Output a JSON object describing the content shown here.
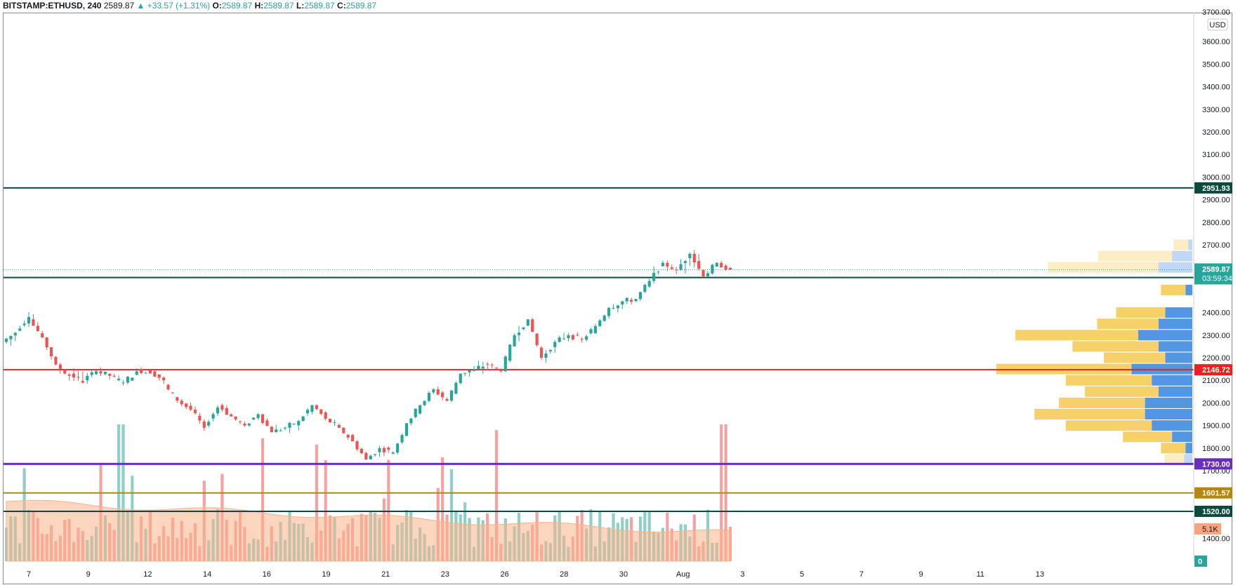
{
  "header": {
    "symbol": "BITSTAMP:ETHUSD, 240",
    "price": "2589.87",
    "change": "▲ +33.57 (+1.31%)",
    "o_label": "O:",
    "o": "2589.87",
    "h_label": "H:",
    "h": "2589.87",
    "l_label": "L:",
    "l": "2589.87",
    "c_label": "C:",
    "c": "2589.87"
  },
  "currency_label": "USD",
  "colors": {
    "up": "#26a69a",
    "down": "#ef5350",
    "up_vol": "#8fcfc8",
    "down_vol": "#f5a3a0",
    "vol_ma": "#f9b28a",
    "vp_yellow": "#f5cc5a",
    "vp_blue": "#4a90e2",
    "level_dark": "#0b4b3f",
    "level_red": "#f21d1d",
    "level_purple": "#6a2ebf",
    "level_gold": "#b8860b",
    "current": "#26a69a"
  },
  "chart_data": {
    "type": "candlestick",
    "x_tick_labels": [
      "7",
      "9",
      "12",
      "14",
      "16",
      "19",
      "21",
      "23",
      "26",
      "28",
      "30",
      "Aug",
      "3",
      "5",
      "7",
      "9",
      "11",
      "13"
    ],
    "y_tick_labels": [
      "3600.00",
      "3500.00",
      "3400.00",
      "3300.00",
      "3200.00",
      "3100.00",
      "3000.00",
      "2900.00",
      "2800.00",
      "2700.00",
      "2400.00",
      "2300.00",
      "2200.00",
      "2100.00",
      "2000.00",
      "1900.00",
      "1800.00",
      "1700.00",
      "1400.00"
    ],
    "y_top_partial": "3700.00",
    "ylim": [
      1330,
      3720
    ],
    "levels": [
      {
        "value": 2951.93,
        "label": "2951.93",
        "color": "#0b4b3f",
        "width": 2
      },
      {
        "value": 2555.06,
        "label": "2555.06",
        "color": "#0b4b3f",
        "width": 2
      },
      {
        "value": 2146.72,
        "label": "2146.72",
        "color": "#f21d1d",
        "width": 2
      },
      {
        "value": 1730.0,
        "label": "1730.00",
        "color": "#6a2ebf",
        "width": 3
      },
      {
        "value": 1601.57,
        "label": "1601.57",
        "color": "#b8860b",
        "width": 2
      },
      {
        "value": 1520.0,
        "label": "1520.00",
        "color": "#0b4b3f",
        "width": 2
      }
    ],
    "current_price": {
      "value": 2589.87,
      "label": "2589.87",
      "countdown": "03:59:34"
    },
    "volume_ma_label": "5.1K",
    "volume_zero_label": "0",
    "ohlc_key_points": [
      [
        2270,
        2330,
        2230,
        2310
      ],
      [
        2320,
        2410,
        2300,
        2380
      ],
      [
        2370,
        2400,
        2280,
        2290
      ],
      [
        2290,
        2300,
        2150,
        2170
      ],
      [
        2170,
        2180,
        2080,
        2120
      ],
      [
        2130,
        2200,
        2050,
        2090
      ],
      [
        2100,
        2160,
        2080,
        2140
      ],
      [
        2140,
        2170,
        2100,
        2120
      ],
      [
        2120,
        2140,
        2070,
        2090
      ],
      [
        2090,
        2160,
        2080,
        2140
      ],
      [
        2150,
        2180,
        2120,
        2130
      ],
      [
        2140,
        2160,
        2080,
        2100
      ],
      [
        2080,
        2100,
        1990,
        2010
      ],
      [
        2010,
        2030,
        1960,
        1970
      ],
      [
        1970,
        1990,
        1870,
        1890
      ],
      [
        1900,
        1990,
        1880,
        1980
      ],
      [
        1990,
        2010,
        1930,
        1940
      ],
      [
        1940,
        1960,
        1880,
        1900
      ],
      [
        1900,
        1960,
        1880,
        1950
      ],
      [
        1950,
        1960,
        1860,
        1870
      ],
      [
        1870,
        1920,
        1850,
        1890
      ],
      [
        1890,
        1930,
        1860,
        1920
      ],
      [
        1920,
        2000,
        1900,
        1990
      ],
      [
        1990,
        2000,
        1910,
        1930
      ],
      [
        1930,
        1950,
        1870,
        1890
      ],
      [
        1890,
        1900,
        1820,
        1830
      ],
      [
        1830,
        1840,
        1720,
        1750
      ],
      [
        1750,
        1810,
        1720,
        1800
      ],
      [
        1800,
        1810,
        1760,
        1780
      ],
      [
        1780,
        1920,
        1770,
        1910
      ],
      [
        1910,
        2000,
        1890,
        1990
      ],
      [
        1990,
        2080,
        1980,
        2060
      ],
      [
        2060,
        2080,
        1990,
        2010
      ],
      [
        2010,
        2140,
        2000,
        2130
      ],
      [
        2130,
        2170,
        2100,
        2150
      ],
      [
        2150,
        2200,
        2110,
        2170
      ],
      [
        2170,
        2180,
        2110,
        2140
      ],
      [
        2140,
        2310,
        2130,
        2300
      ],
      [
        2300,
        2420,
        2260,
        2370
      ],
      [
        2370,
        2380,
        2180,
        2200
      ],
      [
        2200,
        2290,
        2160,
        2270
      ],
      [
        2270,
        2340,
        2250,
        2300
      ],
      [
        2300,
        2320,
        2260,
        2280
      ],
      [
        2280,
        2350,
        2270,
        2340
      ],
      [
        2340,
        2440,
        2310,
        2420
      ],
      [
        2420,
        2480,
        2380,
        2450
      ],
      [
        2450,
        2470,
        2420,
        2460
      ],
      [
        2460,
        2560,
        2450,
        2540
      ],
      [
        2540,
        2670,
        2520,
        2620
      ],
      [
        2620,
        2640,
        2560,
        2590
      ],
      [
        2590,
        2700,
        2520,
        2660
      ],
      [
        2660,
        2710,
        2530,
        2560
      ],
      [
        2560,
        2640,
        2540,
        2620
      ],
      [
        2620,
        2630,
        2580,
        2590
      ]
    ],
    "volume_profile": [
      {
        "price": 2700,
        "yellow": 0.06,
        "blue": 0.03
      },
      {
        "price": 2650,
        "yellow": 0.3,
        "blue": 0.15
      },
      {
        "price": 2600,
        "yellow": 0.45,
        "blue": 0.25
      },
      {
        "price": 2500,
        "yellow": 0.1,
        "blue": 0.05
      },
      {
        "price": 2400,
        "yellow": 0.2,
        "blue": 0.2
      },
      {
        "price": 2350,
        "yellow": 0.25,
        "blue": 0.25
      },
      {
        "price": 2300,
        "yellow": 0.5,
        "blue": 0.4
      },
      {
        "price": 2250,
        "yellow": 0.35,
        "blue": 0.25
      },
      {
        "price": 2200,
        "yellow": 0.25,
        "blue": 0.2
      },
      {
        "price": 2150,
        "yellow": 0.55,
        "blue": 0.45
      },
      {
        "price": 2100,
        "yellow": 0.35,
        "blue": 0.3
      },
      {
        "price": 2050,
        "yellow": 0.3,
        "blue": 0.25
      },
      {
        "price": 2000,
        "yellow": 0.35,
        "blue": 0.35
      },
      {
        "price": 1950,
        "yellow": 0.45,
        "blue": 0.35
      },
      {
        "price": 1900,
        "yellow": 0.35,
        "blue": 0.3
      },
      {
        "price": 1850,
        "yellow": 0.2,
        "blue": 0.15
      },
      {
        "price": 1800,
        "yellow": 0.1,
        "blue": 0.05
      },
      {
        "price": 1750,
        "yellow": 0.08,
        "blue": 0.06
      }
    ]
  }
}
